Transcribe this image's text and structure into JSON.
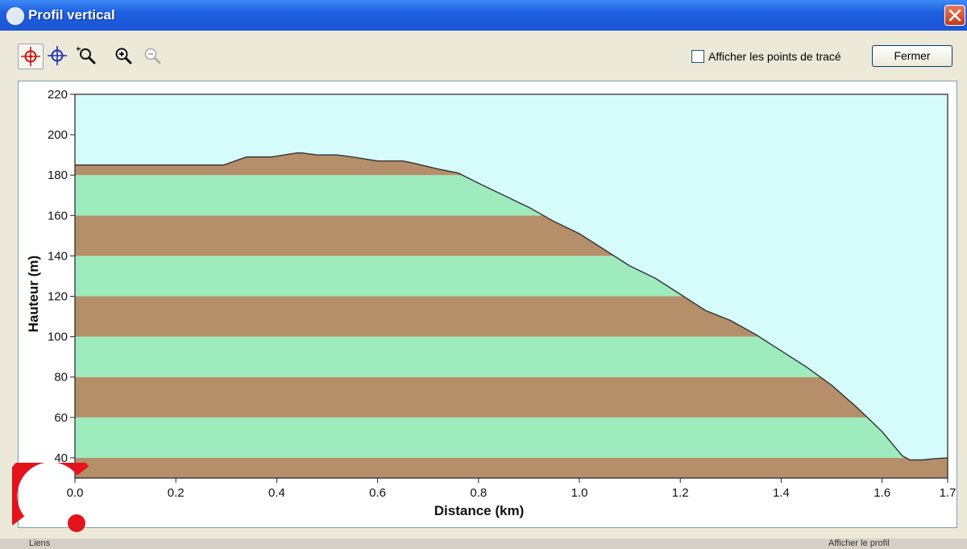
{
  "window": {
    "title": "Profil vertical",
    "bottom_left_text": "Liens",
    "bottom_right_text": "Afficher le profil"
  },
  "toolbar": {
    "tools": [
      {
        "icon": "crosshair-red-icon",
        "pressed": true
      },
      {
        "icon": "crosshair-blue-icon",
        "pressed": false
      },
      {
        "icon": "zoom-box-icon",
        "pressed": false
      },
      {
        "icon": "zoom-in-icon",
        "pressed": false
      },
      {
        "icon": "zoom-out-icon",
        "pressed": false,
        "disabled": true
      }
    ],
    "checkbox_label": "Afficher les points de tracé",
    "checkbox_checked": false,
    "close_label": "Fermer"
  },
  "colors": {
    "sky": "#d6fbfb",
    "band_brown": "#b58f69",
    "band_green": "#9eebbd",
    "profile_line": "#333333",
    "title_bar": "#1f5fe0"
  },
  "chart_data": {
    "type": "area",
    "xlabel": "Distance   (km)",
    "ylabel": "Hauteur (m)",
    "xlim": [
      0,
      1.73
    ],
    "ylim": [
      30,
      220
    ],
    "xticks": [
      "0.0",
      "0.2",
      "0.4",
      "0.6",
      "0.8",
      "1.0",
      "1.2",
      "1.4",
      "1.6",
      "1.7"
    ],
    "xtick_values": [
      0,
      0.2,
      0.4,
      0.6,
      0.8,
      1.0,
      1.2,
      1.4,
      1.6,
      1.73
    ],
    "yticks": [
      "40",
      "60",
      "80",
      "100",
      "120",
      "140",
      "160",
      "180",
      "200",
      "220"
    ],
    "ytick_values": [
      40,
      60,
      80,
      100,
      120,
      140,
      160,
      180,
      200,
      220
    ],
    "bands": [
      {
        "from": 30,
        "to": 40,
        "color": "brown"
      },
      {
        "from": 40,
        "to": 60,
        "color": "green"
      },
      {
        "from": 60,
        "to": 80,
        "color": "brown"
      },
      {
        "from": 80,
        "to": 100,
        "color": "green"
      },
      {
        "from": 100,
        "to": 120,
        "color": "brown"
      },
      {
        "from": 120,
        "to": 140,
        "color": "green"
      },
      {
        "from": 140,
        "to": 160,
        "color": "brown"
      },
      {
        "from": 160,
        "to": 180,
        "color": "green"
      },
      {
        "from": 180,
        "to": 220,
        "color": "brown"
      }
    ],
    "series": [
      {
        "x": [
          0,
          0.1,
          0.2,
          0.295,
          0.34,
          0.39,
          0.44,
          0.45,
          0.48,
          0.52,
          0.55,
          0.6,
          0.65,
          0.67,
          0.72,
          0.76,
          0.8,
          0.85,
          0.9,
          0.95,
          1.0,
          1.05,
          1.1,
          1.15,
          1.2,
          1.25,
          1.3,
          1.35,
          1.4,
          1.45,
          1.5,
          1.55,
          1.6,
          1.64,
          1.655,
          1.68,
          1.7,
          1.73
        ],
        "y": [
          185,
          185,
          185,
          185,
          189,
          189,
          191,
          191,
          190,
          190,
          189,
          187,
          187,
          186,
          183,
          181,
          176,
          170,
          164,
          157,
          151,
          143,
          135,
          129,
          121,
          113,
          108,
          101,
          93,
          85,
          76,
          65,
          53,
          41,
          39,
          39,
          39.5,
          40
        ]
      }
    ]
  }
}
